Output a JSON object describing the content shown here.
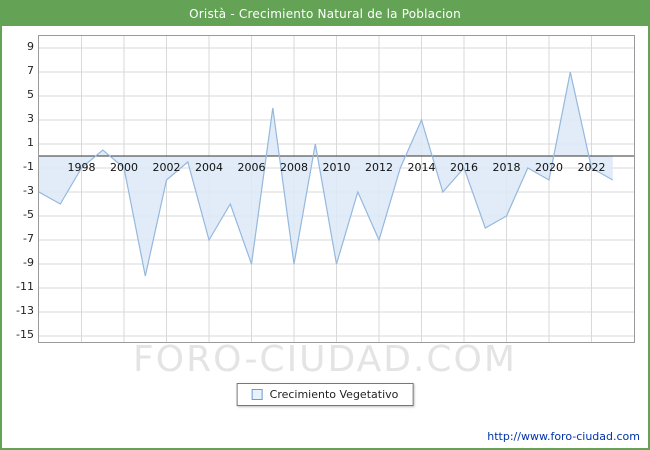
{
  "header": {
    "title": "Oristà - Crecimiento Natural de la Poblacion"
  },
  "legend": {
    "label": "Crecimiento Vegetativo"
  },
  "watermark": {
    "text": "FORO-CIUDAD.COM"
  },
  "footer": {
    "link": "http://www.foro-ciudad.com"
  },
  "colors": {
    "header_bg": "#64a356",
    "page_border": "#64a356",
    "link": "#0033aa",
    "watermark": "#e4e4e4"
  },
  "chart_data": {
    "type": "area",
    "title": "Oristà - Crecimiento Natural de la Poblacion",
    "series_name": "Crecimiento Vegetativo",
    "years": [
      1996,
      1997,
      1998,
      1999,
      2000,
      2001,
      2002,
      2003,
      2004,
      2005,
      2006,
      2007,
      2008,
      2009,
      2010,
      2011,
      2012,
      2013,
      2014,
      2015,
      2016,
      2017,
      2018,
      2019,
      2020,
      2021,
      2022,
      2023
    ],
    "values": [
      -3,
      -4,
      -1,
      0.5,
      -1,
      -10,
      -2,
      -0.5,
      -7,
      -4,
      -9,
      4,
      -9,
      1,
      -9,
      -3,
      -7,
      -1,
      3,
      -3,
      -1,
      -6,
      -5,
      -1,
      -2,
      7,
      -1,
      -2
    ],
    "xticks": [
      1998,
      2000,
      2002,
      2004,
      2006,
      2008,
      2010,
      2012,
      2014,
      2016,
      2018,
      2020,
      2022
    ],
    "yticks": [
      9,
      7,
      5,
      3,
      1,
      -1,
      -3,
      -5,
      -7,
      -9,
      -11,
      -13,
      -15
    ],
    "xlim": [
      1996,
      2024
    ],
    "ylim": [
      -15.5,
      10
    ],
    "baseline": 0,
    "grid": true,
    "legend_position": "bottom-center",
    "xlabel": "",
    "ylabel": "",
    "colors": {
      "line": "#95b8dd",
      "fill": "#dce9f7",
      "grid": "#d9d9d9",
      "axis": "#333333",
      "tick_text": "#111111"
    }
  }
}
